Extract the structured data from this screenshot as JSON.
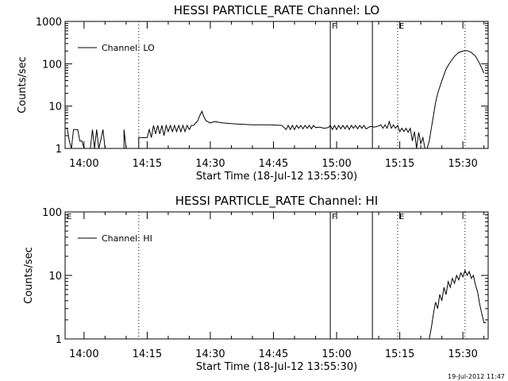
{
  "footer": {
    "timestamp": "19-Jul-2012 11:47"
  },
  "chart_data": [
    {
      "type": "line",
      "title": "HESSI PARTICLE_RATE Channel: LO",
      "xlabel": "Start Time (18-Jul-12 13:55:30)",
      "ylabel": "Counts/sec",
      "yscale": "log",
      "ylim": [
        1,
        1000
      ],
      "xlim": [
        "13:55:30",
        "15:36:00"
      ],
      "x_ticks": [
        "14:00",
        "14:15",
        "14:30",
        "14:45",
        "15:00",
        "15:15",
        "15:30"
      ],
      "y_ticks": [
        "1",
        "10",
        "100",
        "1000"
      ],
      "legend": {
        "position": "top-left",
        "entries": [
          "Channel: LO"
        ]
      },
      "markers": [
        {
          "time": "14:13:00",
          "style": "dotted",
          "label": ""
        },
        {
          "time": "14:58:30",
          "style": "solid",
          "label": "F"
        },
        {
          "time": "15:08:30",
          "style": "solid",
          "label": ""
        },
        {
          "time": "15:14:30",
          "style": "dotted",
          "label": "E"
        },
        {
          "time": "15:30:30",
          "style": "dotted",
          "label": ""
        }
      ],
      "segments": [
        [
          [
            "13:55:30",
            3
          ],
          [
            "13:56:00",
            3
          ],
          [
            "13:56:30",
            1.5
          ],
          [
            "13:57:00",
            1
          ],
          [
            "13:57:30",
            2.8
          ],
          [
            "13:58:30",
            2.8
          ],
          [
            "13:59:00",
            1.5
          ],
          [
            "13:59:30",
            1.5
          ],
          [
            "14:00:00",
            1
          ]
        ],
        [
          [
            "14:01:30",
            1
          ],
          [
            "14:02:00",
            2.8
          ],
          [
            "14:02:30",
            1
          ],
          [
            "14:03:00",
            2.8
          ],
          [
            "14:03:30",
            1
          ],
          [
            "14:04:00",
            1.6
          ],
          [
            "14:04:30",
            2.8
          ],
          [
            "14:05:00",
            1
          ]
        ],
        [
          [
            "14:09:30",
            1
          ],
          [
            "14:09:30",
            2.8
          ],
          [
            "14:10:00",
            1
          ]
        ],
        [
          [
            "14:13:00",
            1
          ],
          [
            "14:13:00",
            1.8
          ],
          [
            "14:15:00",
            1.8
          ],
          [
            "14:15:30",
            2.8
          ],
          [
            "14:16:00",
            1.8
          ],
          [
            "14:16:30",
            3.5
          ],
          [
            "14:17:00",
            2.2
          ],
          [
            "14:17:30",
            3.5
          ],
          [
            "14:18:00",
            2.2
          ],
          [
            "14:18:30",
            3.5
          ],
          [
            "14:19:00",
            2
          ],
          [
            "14:19:30",
            3.5
          ],
          [
            "14:20:00",
            2.5
          ],
          [
            "14:20:30",
            3.5
          ],
          [
            "14:21:00",
            2.5
          ],
          [
            "14:21:30",
            3.5
          ],
          [
            "14:22:00",
            2.5
          ],
          [
            "14:22:30",
            3.5
          ],
          [
            "14:23:00",
            2.5
          ],
          [
            "14:23:30",
            3.5
          ],
          [
            "14:24:00",
            2.5
          ],
          [
            "14:24:30",
            3.5
          ],
          [
            "14:25:00",
            2.8
          ],
          [
            "14:25:30",
            3.5
          ],
          [
            "14:26:00",
            3.5
          ],
          [
            "14:27:00",
            4.5
          ],
          [
            "14:27:30",
            6
          ],
          [
            "14:28:00",
            7.5
          ],
          [
            "14:28:30",
            5.5
          ],
          [
            "14:29:00",
            4.5
          ],
          [
            "14:30:00",
            4
          ],
          [
            "14:31:00",
            4.3
          ],
          [
            "14:33:00",
            4
          ],
          [
            "14:36:00",
            3.8
          ],
          [
            "14:40:00",
            3.6
          ],
          [
            "14:44:00",
            3.6
          ],
          [
            "14:47:00",
            3.5
          ],
          [
            "14:48:00",
            2.8
          ],
          [
            "14:48:30",
            3.5
          ],
          [
            "14:49:00",
            2.8
          ],
          [
            "14:49:30",
            3.5
          ],
          [
            "14:50:00",
            2.8
          ],
          [
            "14:50:30",
            3.5
          ],
          [
            "14:51:00",
            3
          ],
          [
            "14:51:30",
            3.5
          ],
          [
            "14:52:00",
            2.9
          ],
          [
            "14:52:30",
            3.5
          ],
          [
            "14:53:00",
            3
          ],
          [
            "14:53:30",
            3.5
          ],
          [
            "14:54:00",
            2.9
          ],
          [
            "14:54:30",
            3.5
          ],
          [
            "14:55:00",
            3.1
          ],
          [
            "14:56:00",
            3.2
          ],
          [
            "14:57:00",
            3
          ],
          [
            "14:58:00",
            3.1
          ],
          [
            "14:58:30",
            3.5
          ],
          [
            "14:59:00",
            2.8
          ],
          [
            "14:59:30",
            3.5
          ],
          [
            "15:00:00",
            2.8
          ],
          [
            "15:00:30",
            3.5
          ],
          [
            "15:01:00",
            2.9
          ],
          [
            "15:01:30",
            3.5
          ],
          [
            "15:02:00",
            2.9
          ],
          [
            "15:02:30",
            3.5
          ],
          [
            "15:03:00",
            2.8
          ],
          [
            "15:03:30",
            3.5
          ],
          [
            "15:04:00",
            3
          ],
          [
            "15:04:30",
            3.5
          ],
          [
            "15:05:00",
            2.9
          ],
          [
            "15:05:30",
            3.5
          ],
          [
            "15:06:00",
            3
          ],
          [
            "15:06:30",
            3.5
          ],
          [
            "15:07:00",
            2.9
          ],
          [
            "15:08:00",
            3.3
          ],
          [
            "15:09:00",
            3.2
          ],
          [
            "15:10:00",
            3.4
          ],
          [
            "15:10:30",
            3.6
          ],
          [
            "15:11:00",
            3
          ],
          [
            "15:11:30",
            3.6
          ],
          [
            "15:12:00",
            3
          ],
          [
            "15:12:30",
            4.3
          ],
          [
            "15:13:00",
            3
          ],
          [
            "15:13:30",
            3.6
          ],
          [
            "15:14:00",
            3
          ],
          [
            "15:14:30",
            3.5
          ],
          [
            "15:15:00",
            2.5
          ],
          [
            "15:15:30",
            3
          ],
          [
            "15:16:00",
            2.5
          ],
          [
            "15:16:30",
            3
          ],
          [
            "15:17:00",
            2.4
          ],
          [
            "15:17:30",
            3
          ],
          [
            "15:18:00",
            1.5
          ],
          [
            "15:18:30",
            2.5
          ],
          [
            "15:19:00",
            1
          ],
          [
            "15:19:30",
            2.4
          ],
          [
            "15:20:00",
            1.3
          ],
          [
            "15:20:30",
            1.8
          ],
          [
            "15:21:00",
            1
          ]
        ],
        [
          [
            "15:21:30",
            1
          ],
          [
            "15:22:00",
            1.5
          ],
          [
            "15:22:30",
            3
          ],
          [
            "15:23:00",
            6
          ],
          [
            "15:23:30",
            12
          ],
          [
            "15:24:00",
            20
          ],
          [
            "15:25:00",
            40
          ],
          [
            "15:26:00",
            75
          ],
          [
            "15:27:00",
            110
          ],
          [
            "15:28:00",
            150
          ],
          [
            "15:29:00",
            185
          ],
          [
            "15:30:00",
            200
          ],
          [
            "15:31:00",
            205
          ],
          [
            "15:32:00",
            185
          ],
          [
            "15:33:00",
            150
          ],
          [
            "15:34:00",
            100
          ],
          [
            "15:35:00",
            60
          ]
        ]
      ]
    },
    {
      "type": "line",
      "title": "HESSI PARTICLE_RATE Channel: HI",
      "xlabel": "Start Time (18-Jul-12 13:55:30)",
      "ylabel": "Counts/sec",
      "yscale": "log",
      "ylim": [
        1,
        100
      ],
      "xlim": [
        "13:55:30",
        "15:36:00"
      ],
      "x_ticks": [
        "14:00",
        "14:15",
        "14:30",
        "14:45",
        "15:00",
        "15:15",
        "15:30"
      ],
      "y_ticks": [
        "1",
        "10",
        "100"
      ],
      "legend": {
        "position": "top-left",
        "entries": [
          "Channel: HI"
        ]
      },
      "markers": [
        {
          "time": "13:55:30",
          "style": "solid",
          "label": "E"
        },
        {
          "time": "14:13:00",
          "style": "dotted",
          "label": ""
        },
        {
          "time": "14:58:30",
          "style": "solid",
          "label": "F"
        },
        {
          "time": "15:08:30",
          "style": "solid",
          "label": ""
        },
        {
          "time": "15:14:30",
          "style": "dotted",
          "label": "E"
        },
        {
          "time": "15:30:30",
          "style": "dotted",
          "label": ""
        }
      ],
      "segments": [
        [
          [
            "15:22:00",
            1
          ],
          [
            "15:22:30",
            1.5
          ],
          [
            "15:23:00",
            2.5
          ],
          [
            "15:23:30",
            3.8
          ],
          [
            "15:24:00",
            3
          ],
          [
            "15:24:30",
            5
          ],
          [
            "15:25:00",
            4
          ],
          [
            "15:25:30",
            6.5
          ],
          [
            "15:26:00",
            5
          ],
          [
            "15:26:30",
            8
          ],
          [
            "15:27:00",
            6.5
          ],
          [
            "15:27:30",
            9
          ],
          [
            "15:28:00",
            7.5
          ],
          [
            "15:28:30",
            10
          ],
          [
            "15:29:00",
            8.5
          ],
          [
            "15:29:30",
            11
          ],
          [
            "15:30:00",
            9.5
          ],
          [
            "15:30:30",
            12
          ],
          [
            "15:31:00",
            10
          ],
          [
            "15:31:30",
            11.5
          ],
          [
            "15:32:00",
            9
          ],
          [
            "15:32:30",
            10
          ],
          [
            "15:33:00",
            7
          ],
          [
            "15:33:30",
            5.5
          ],
          [
            "15:34:00",
            3.5
          ],
          [
            "15:34:30",
            2.5
          ],
          [
            "15:35:00",
            1.8
          ],
          [
            "15:35:30",
            1.8
          ]
        ]
      ]
    }
  ]
}
